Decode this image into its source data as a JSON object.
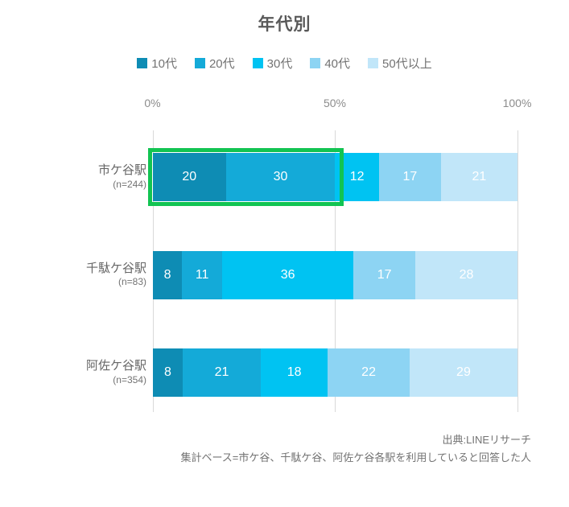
{
  "title": "年代別",
  "axis": {
    "ticks": [
      "0%",
      "50%",
      "100%"
    ],
    "tick_positions_pct": [
      0,
      50,
      100
    ]
  },
  "chart_data": {
    "type": "bar",
    "orientation": "horizontal-stacked",
    "title": "年代別",
    "xlim": [
      0,
      100
    ],
    "x_ticks": [
      "0%",
      "50%",
      "100%"
    ],
    "grid": "vertical lines at 0%, 50%, 100%",
    "legend_position": "top-center",
    "series_labels": [
      "10代",
      "20代",
      "30代",
      "40代",
      "50代以上"
    ],
    "series_colors": [
      "#0e8cb4",
      "#14aad8",
      "#00c3f2",
      "#8dd4f3",
      "#c1e6f9"
    ],
    "rows": [
      {
        "label": "市ケ谷駅",
        "n": "(n=244)",
        "values": [
          20,
          30,
          12,
          17,
          21
        ]
      },
      {
        "label": "千駄ケ谷駅",
        "n": "(n=83)",
        "values": [
          8,
          11,
          36,
          17,
          28
        ]
      },
      {
        "label": "阿佐ケ谷駅",
        "n": "(n=354)",
        "values": [
          8,
          21,
          18,
          22,
          29
        ]
      }
    ],
    "highlight": {
      "row": 0,
      "segments": [
        0,
        1
      ],
      "color": "#12c452",
      "description": "green box around 10代 and 20代 segments of 市ケ谷駅"
    }
  },
  "footer": {
    "source": "出典:LINEリサーチ",
    "note": "集計ベース=市ケ谷、千駄ケ谷、阿佐ケ谷各駅を利用していると回答した人"
  }
}
